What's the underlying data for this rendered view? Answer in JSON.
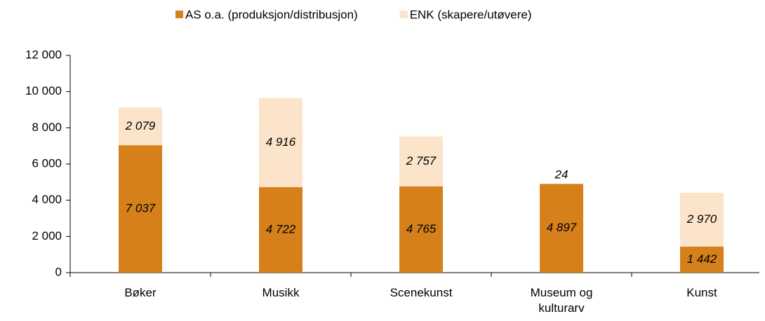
{
  "chart_data": {
    "type": "stacked_bar",
    "categories": [
      "Bøker",
      "Musikk",
      "Scenekunst",
      "Museum og kulturarv",
      "Kunst"
    ],
    "series": [
      {
        "name": "AS o.a. (produksjon/distribusjon)",
        "color": "#d5801b",
        "values": [
          7037,
          4722,
          4765,
          4897,
          1442
        ],
        "value_labels": [
          "7 037",
          "4 722",
          "4 765",
          "4 897",
          "1 442"
        ]
      },
      {
        "name": "ENK (skapere/utøvere)",
        "color": "#fbe4c9",
        "values": [
          2079,
          4916,
          2757,
          24,
          2970
        ],
        "value_labels": [
          "2 079",
          "4 916",
          "2 757",
          "24",
          "2 970"
        ]
      }
    ],
    "ylim": [
      0,
      12000
    ],
    "yticks": [
      0,
      {
        "value": 2000,
        "label": "2 000"
      },
      {
        "value": 4000,
        "label": "4 000"
      },
      {
        "value": 6000,
        "label": "6 000"
      },
      {
        "value": 8000,
        "label": "8 000"
      },
      {
        "value": 10000,
        "label": "10 000"
      },
      {
        "value": 12000,
        "label": "12 000"
      }
    ],
    "legend": "top"
  }
}
